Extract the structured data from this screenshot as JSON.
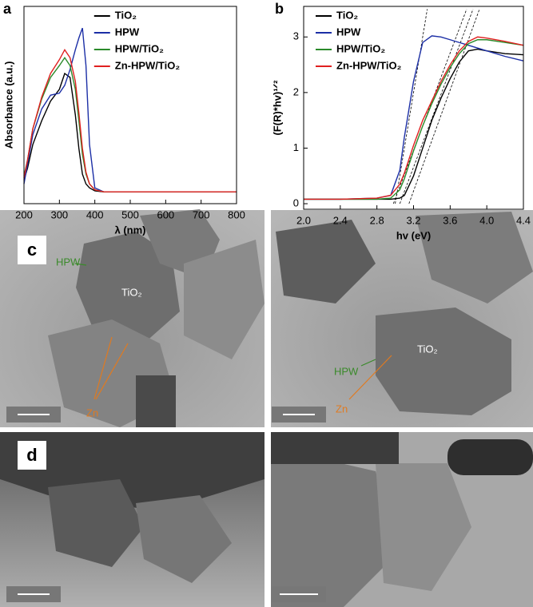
{
  "chart_data": [
    {
      "type": "line",
      "panel_label": "a",
      "xlabel": "λ (nm)",
      "ylabel": "Absorbance (a.u.)",
      "xlim": [
        200,
        800
      ],
      "xticks": [
        200,
        300,
        400,
        500,
        600,
        700,
        800
      ],
      "ylim": [
        0,
        1
      ],
      "legend": "upper center",
      "x": [
        200,
        210,
        225,
        250,
        275,
        300,
        315,
        330,
        345,
        355,
        365,
        375,
        385,
        400,
        425,
        450,
        500,
        600,
        700,
        800
      ],
      "series": [
        {
          "name": "TiO₂",
          "color": "#000000",
          "values": [
            0.12,
            0.18,
            0.3,
            0.42,
            0.52,
            0.58,
            0.66,
            0.64,
            0.45,
            0.28,
            0.15,
            0.1,
            0.08,
            0.065,
            0.06,
            0.06,
            0.06,
            0.06,
            0.06,
            0.06
          ]
        },
        {
          "name": "HPW",
          "color": "#1c2fa6",
          "values": [
            0.1,
            0.2,
            0.35,
            0.48,
            0.55,
            0.56,
            0.6,
            0.68,
            0.78,
            0.84,
            0.89,
            0.7,
            0.3,
            0.08,
            0.06,
            0.06,
            0.06,
            0.06,
            0.06,
            0.06
          ]
        },
        {
          "name": "HPW/TiO₂",
          "color": "#2a8a2a",
          "values": [
            0.14,
            0.22,
            0.38,
            0.53,
            0.64,
            0.7,
            0.74,
            0.7,
            0.58,
            0.42,
            0.25,
            0.15,
            0.1,
            0.07,
            0.06,
            0.06,
            0.06,
            0.06,
            0.06,
            0.06
          ]
        },
        {
          "name": "Zn-HPW/TiO₂",
          "color": "#e02020",
          "values": [
            0.13,
            0.22,
            0.38,
            0.54,
            0.66,
            0.73,
            0.78,
            0.74,
            0.62,
            0.46,
            0.28,
            0.16,
            0.1,
            0.07,
            0.06,
            0.06,
            0.06,
            0.06,
            0.06,
            0.06
          ]
        }
      ]
    },
    {
      "type": "line",
      "panel_label": "b",
      "xlabel": "hv (eV)",
      "ylabel": "(F(R)*hv)¹ᐟ²",
      "xlim": [
        2.0,
        4.4
      ],
      "xticks": [
        {
          "value": 2.0,
          "label": "2.0"
        },
        2.4,
        2.8,
        3.2,
        3.6,
        {
          "value": 4.0,
          "label": "4.0"
        },
        4.4
      ],
      "ylim": [
        -0.1,
        3.55
      ],
      "yticks": [
        0,
        1,
        2,
        3
      ],
      "legend": "upper left",
      "x": [
        2.0,
        2.4,
        2.8,
        2.95,
        3.05,
        3.1,
        3.2,
        3.3,
        3.4,
        3.5,
        3.6,
        3.7,
        3.8,
        3.9,
        4.0,
        4.2,
        4.4
      ],
      "series": [
        {
          "name": "TiO₂",
          "color": "#000000",
          "values": [
            0.08,
            0.08,
            0.08,
            0.08,
            0.1,
            0.15,
            0.5,
            1.0,
            1.5,
            1.9,
            2.25,
            2.55,
            2.75,
            2.78,
            2.75,
            2.7,
            2.68
          ]
        },
        {
          "name": "HPW",
          "color": "#1c2fa6",
          "values": [
            0.08,
            0.08,
            0.1,
            0.15,
            0.6,
            1.2,
            2.2,
            2.9,
            3.02,
            3.0,
            2.95,
            2.9,
            2.85,
            2.8,
            2.75,
            2.65,
            2.57
          ]
        },
        {
          "name": "HPW/TiO₂",
          "color": "#2a8a2a",
          "values": [
            0.08,
            0.08,
            0.08,
            0.1,
            0.25,
            0.45,
            0.95,
            1.4,
            1.8,
            2.15,
            2.45,
            2.7,
            2.88,
            2.95,
            2.95,
            2.9,
            2.85
          ]
        },
        {
          "name": "Zn-HPW/TiO₂",
          "color": "#e02020",
          "values": [
            0.08,
            0.08,
            0.1,
            0.15,
            0.35,
            0.55,
            1.05,
            1.5,
            1.85,
            2.2,
            2.5,
            2.75,
            2.92,
            3.0,
            2.98,
            2.92,
            2.85
          ]
        }
      ],
      "tangent_lines": [
        {
          "x": [
            3.0,
            3.35
          ],
          "y": [
            0,
            3.5
          ]
        },
        {
          "x": [
            3.15,
            3.92
          ],
          "y": [
            0,
            3.5
          ]
        },
        {
          "x": [
            3.05,
            3.85
          ],
          "y": [
            0,
            3.5
          ]
        },
        {
          "x": [
            2.98,
            3.78
          ],
          "y": [
            0,
            3.5
          ]
        }
      ]
    }
  ],
  "panels": [
    {
      "label": "c",
      "left_annotations": [
        "HPW",
        "TiO₂",
        "Zn"
      ],
      "right_annotations": [
        "TiO₂",
        "HPW",
        "Zn"
      ]
    },
    {
      "label": "d"
    }
  ]
}
